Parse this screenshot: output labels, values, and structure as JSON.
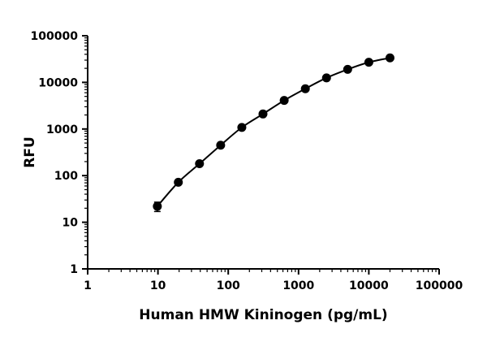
{
  "chart_data": {
    "type": "scatter",
    "title": "",
    "xlabel": "Human HMW Kininogen (pg/mL)",
    "ylabel": "RFU",
    "x_scale": "log",
    "y_scale": "log",
    "xlim": [
      1,
      100000
    ],
    "ylim": [
      1,
      100000
    ],
    "x_ticks": [
      "1",
      "10",
      "100",
      "1000",
      "10000",
      "100000"
    ],
    "y_ticks": [
      "1",
      "10",
      "100",
      "1000",
      "10000",
      "100000"
    ],
    "grid": false,
    "legend": "none",
    "series": [
      {
        "x": [
          9.8,
          19.5,
          39,
          78,
          156,
          312,
          625,
          1250,
          2500,
          5000,
          10000,
          20000
        ],
        "y": [
          22,
          72,
          180,
          450,
          1080,
          2100,
          4100,
          7300,
          12500,
          19000,
          27000,
          33500
        ],
        "y_err": [
          5,
          6,
          12,
          25,
          60,
          100,
          180,
          300,
          500,
          700,
          900,
          1200
        ],
        "color": "#000000",
        "fit": "curve"
      }
    ]
  }
}
